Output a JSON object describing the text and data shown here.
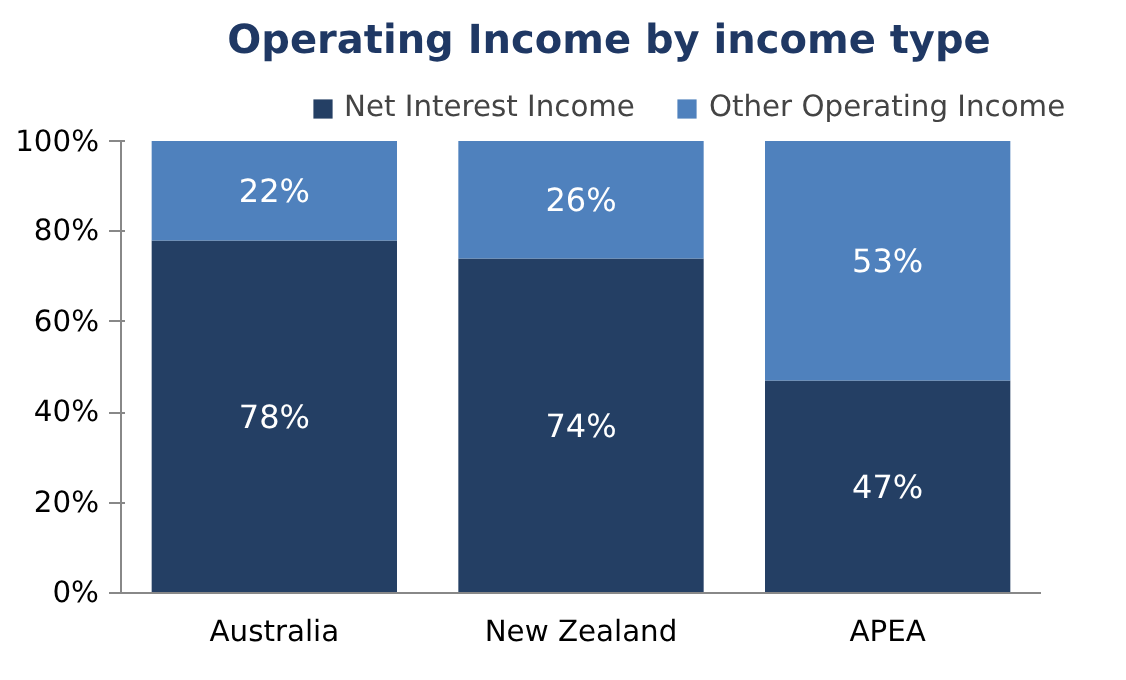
{
  "chart_data": {
    "type": "bar",
    "title": "Operating Income by income type",
    "stacked": true,
    "categories": [
      "Australia",
      "New Zealand",
      "APEA"
    ],
    "series": [
      {
        "name": "Net Interest Income",
        "color": "#243f64",
        "values": [
          78,
          74,
          47
        ],
        "value_labels": [
          "78%",
          "74%",
          "47%"
        ]
      },
      {
        "name": "Other Operating Income",
        "color": "#4f81bd",
        "values": [
          22,
          26,
          53
        ],
        "value_labels": [
          "22%",
          "26%",
          "53%"
        ]
      }
    ],
    "ylim": [
      0,
      100
    ],
    "yticks": [
      {
        "value": 0,
        "label": "0%"
      },
      {
        "value": 20,
        "label": "20%"
      },
      {
        "value": 40,
        "label": "40%"
      },
      {
        "value": 60,
        "label": "60%"
      },
      {
        "value": 80,
        "label": "80%"
      },
      {
        "value": 100,
        "label": "100%"
      }
    ],
    "grid": false,
    "legend": "top"
  }
}
